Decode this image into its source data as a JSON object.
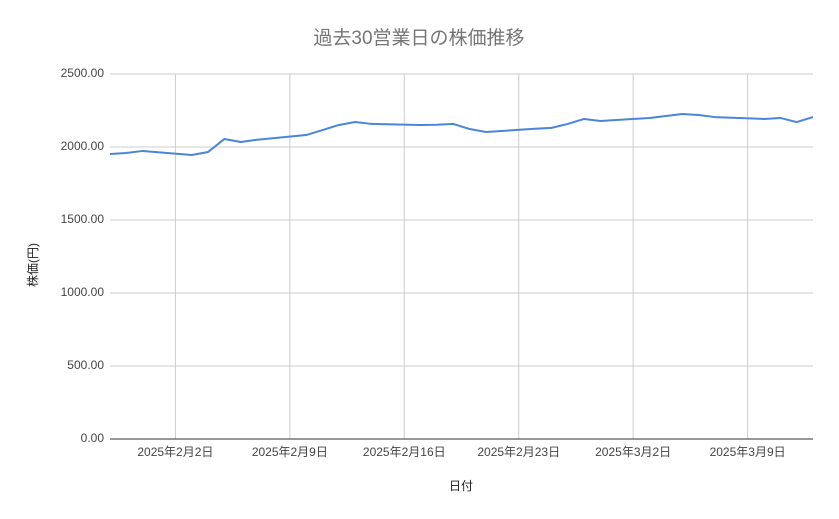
{
  "chart_data": {
    "type": "line",
    "title": "過去30営業日の株価推移",
    "x_label": "日付",
    "y_label": "株価(円)",
    "x": [
      "2025-01-29",
      "2025-01-30",
      "2025-01-31",
      "2025-02-03",
      "2025-02-04",
      "2025-02-05",
      "2025-02-06",
      "2025-02-07",
      "2025-02-10",
      "2025-02-11",
      "2025-02-12",
      "2025-02-13",
      "2025-02-14",
      "2025-02-17",
      "2025-02-18",
      "2025-02-19",
      "2025-02-20",
      "2025-02-21",
      "2025-02-24",
      "2025-02-25",
      "2025-02-26",
      "2025-02-27",
      "2025-02-28",
      "2025-03-03",
      "2025-03-04",
      "2025-03-05",
      "2025-03-06",
      "2025-03-07",
      "2025-03-10",
      "2025-03-11",
      "2025-03-12",
      "2025-03-13"
    ],
    "series": [
      {
        "name": "株価",
        "color": "#4a86d8",
        "values": [
          1952,
          1959,
          1973,
          1945,
          1966,
          2055,
          2034,
          2050,
          2082,
          2116,
          2151,
          2171,
          2158,
          2151,
          2152,
          2158,
          2123,
          2103,
          2125,
          2131,
          2158,
          2192,
          2178,
          2199,
          2212,
          2226,
          2219,
          2205,
          2192,
          2199,
          2171,
          2205
        ]
      }
    ],
    "xlim": [
      "2025-01-29",
      "2025-03-13"
    ],
    "xticks": [
      {
        "value": "2025-02-02",
        "label": "2025年2月2日"
      },
      {
        "value": "2025-02-09",
        "label": "2025年2月9日"
      },
      {
        "value": "2025-02-16",
        "label": "2025年2月16日"
      },
      {
        "value": "2025-02-23",
        "label": "2025年2月23日"
      },
      {
        "value": "2025-03-02",
        "label": "2025年3月2日"
      },
      {
        "value": "2025-03-09",
        "label": "2025年3月9日"
      }
    ],
    "ylim": [
      0,
      2500
    ],
    "yticks": [
      {
        "value": 0,
        "label": "0.00"
      },
      {
        "value": 500,
        "label": "500.00"
      },
      {
        "value": 1000,
        "label": "1000.00"
      },
      {
        "value": 1500,
        "label": "1500.00"
      },
      {
        "value": 2000,
        "label": "2000.00"
      },
      {
        "value": 2500,
        "label": "2500.00"
      }
    ],
    "grid": true
  }
}
